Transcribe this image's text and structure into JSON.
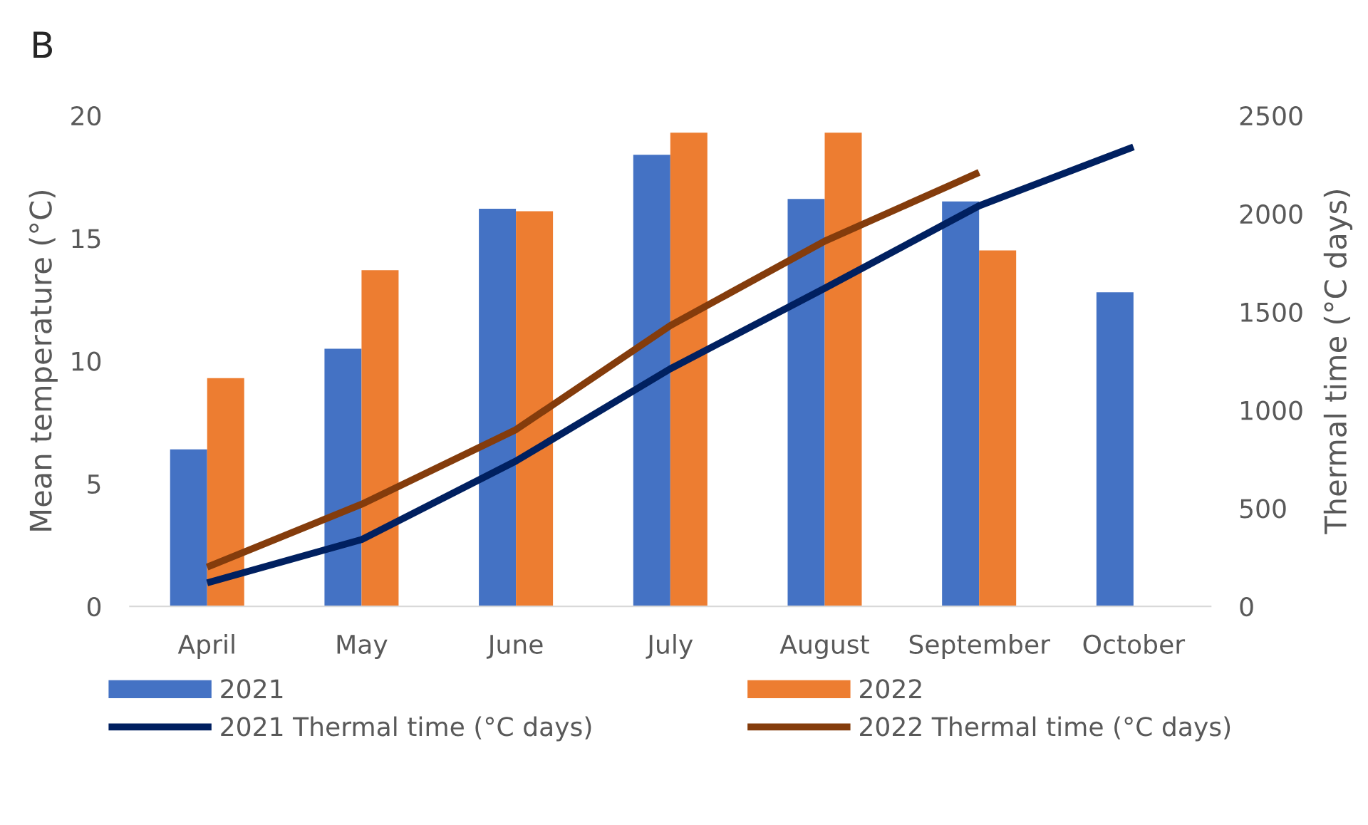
{
  "chart_data": {
    "type": "bar",
    "title": "B",
    "categories": [
      "April",
      "May",
      "June",
      "July",
      "August",
      "September",
      "October"
    ],
    "ylabel": "Mean temperature (°C)",
    "y2label": "Thermal time (°C days)",
    "ylim": [
      0,
      20
    ],
    "yticks": [
      0,
      5,
      10,
      15,
      20
    ],
    "y2lim": [
      0,
      2500
    ],
    "y2ticks": [
      0,
      500,
      1000,
      1500,
      2000,
      2500
    ],
    "grid": false,
    "legend": "bottom",
    "series": [
      {
        "name": "2021",
        "color": "#4472c4",
        "values": [
          6.4,
          10.5,
          16.2,
          18.4,
          16.6,
          16.5,
          12.8
        ]
      },
      {
        "name": "2022",
        "color": "#ed7d31",
        "values": [
          9.3,
          13.7,
          16.1,
          19.3,
          19.3,
          14.5,
          null
        ]
      },
      {
        "name": "2021 Thermal time (°C days)",
        "type": "line",
        "axis": "y2",
        "color": "#002060",
        "values": [
          120,
          340,
          740,
          1210,
          1620,
          2040,
          2340
        ]
      },
      {
        "name": "2022 Thermal time (°C days)",
        "type": "line",
        "axis": "y2",
        "color": "#843c0c",
        "values": [
          200,
          520,
          900,
          1430,
          1860,
          2210,
          null
        ]
      }
    ]
  }
}
